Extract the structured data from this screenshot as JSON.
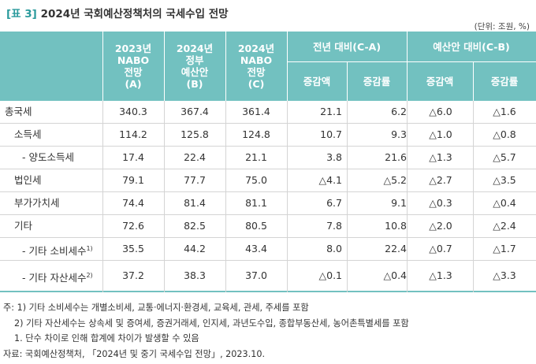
{
  "title": {
    "tag": "[표 3]",
    "text": "2024년 국회예산정책처의 국세수입 전망"
  },
  "unit": "(단위: 조원, %)",
  "header": {
    "col_a": [
      "2023년",
      "NABO",
      "전망",
      "(A)"
    ],
    "col_b": [
      "2024년",
      "정부",
      "예산안",
      "(B)"
    ],
    "col_c": [
      "2024년",
      "NABO",
      "전망",
      "(C)"
    ],
    "group_d": "전년 대비(C-A)",
    "group_e": "예산안 대비(C-B)",
    "d1": "증감액",
    "d2": "증감률",
    "e1": "증감액",
    "e2": "증감률"
  },
  "rows": [
    {
      "label": "총국세",
      "a": "340.3",
      "b": "367.4",
      "c": "361.4",
      "d1": "21.1",
      "d2": "6.2",
      "e1": "△6.0",
      "e2": "△1.6"
    },
    {
      "label": "소득세",
      "a": "114.2",
      "b": "125.8",
      "c": "124.8",
      "d1": "10.7",
      "d2": "9.3",
      "e1": "△1.0",
      "e2": "△0.8"
    },
    {
      "label": "- 양도소득세",
      "a": "17.4",
      "b": "22.4",
      "c": "21.1",
      "d1": "3.8",
      "d2": "21.6",
      "e1": "△1.3",
      "e2": "△5.7"
    },
    {
      "label": "법인세",
      "a": "79.1",
      "b": "77.7",
      "c": "75.0",
      "d1": "△4.1",
      "d2": "△5.2",
      "e1": "△2.7",
      "e2": "△3.5"
    },
    {
      "label": "부가가치세",
      "a": "74.4",
      "b": "81.4",
      "c": "81.1",
      "d1": "6.7",
      "d2": "9.1",
      "e1": "△0.3",
      "e2": "△0.4"
    },
    {
      "label": "기타",
      "a": "72.6",
      "b": "82.5",
      "c": "80.5",
      "d1": "7.8",
      "d2": "10.8",
      "e1": "△2.0",
      "e2": "△2.4"
    },
    {
      "label": "- 기타 소비세수",
      "sup": "1)",
      "a": "35.5",
      "b": "44.2",
      "c": "43.4",
      "d1": "8.0",
      "d2": "22.4",
      "e1": "△0.7",
      "e2": "△1.7"
    },
    {
      "label": "- 기타 자산세수",
      "sup": "2)",
      "a": "37.2",
      "b": "38.3",
      "c": "37.0",
      "d1": "△0.1",
      "d2": "△0.4",
      "e1": "△1.3",
      "e2": "△3.3"
    }
  ],
  "notes": {
    "n1": "주: 1) 기타 소비세수는 개별소비세, 교통·에너지·환경세, 교육세, 관세, 주세를 포함",
    "n2": "2) 기타 자산세수는 상속세 및 증여세, 증권거래세, 인지세, 과년도수입, 종합부동산세, 농어촌특별세를 포함",
    "n3": "1. 단수 차이로 인해 합계에 차이가 발생할 수 있음",
    "source": "자료: 국회예산정책처, 「2024년 및 중기 국세수입 전망」, 2023.10."
  },
  "colors": {
    "header_bg": "#72c1c0",
    "title_tag": "#2a9a9c"
  }
}
